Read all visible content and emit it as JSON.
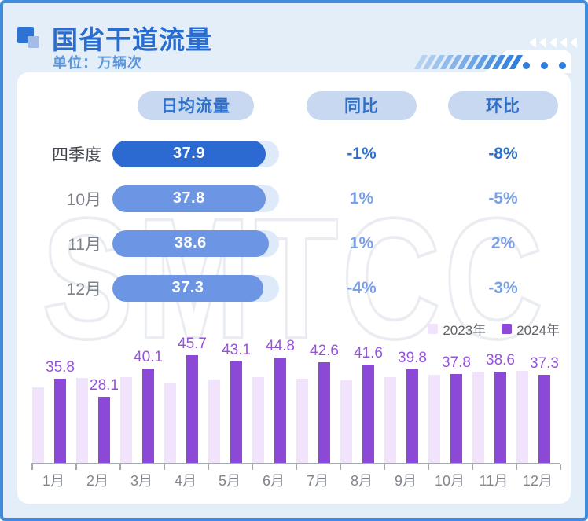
{
  "header": {
    "title": "国省干道流量",
    "subtitle": "单位：万辆次"
  },
  "watermark": "SMTCC",
  "decor": {
    "chevrons_count": 5,
    "dots_count": 3,
    "slashes_count": 12
  },
  "table": {
    "columns": [
      {
        "key": "flow",
        "label": "日均流量"
      },
      {
        "key": "yoy",
        "label": "同比"
      },
      {
        "key": "mom",
        "label": "环比"
      }
    ],
    "bar_scale_max": 41.2,
    "rows": [
      {
        "label": "四季度",
        "flow": 37.9,
        "yoy": "-1%",
        "mom": "-8%",
        "emphasis": true
      },
      {
        "label": "10月",
        "flow": 37.8,
        "yoy": "1%",
        "mom": "-5%",
        "emphasis": false
      },
      {
        "label": "11月",
        "flow": 38.6,
        "yoy": "1%",
        "mom": "2%",
        "emphasis": false
      },
      {
        "label": "12月",
        "flow": 37.3,
        "yoy": "-4%",
        "mom": "-3%",
        "emphasis": false
      }
    ]
  },
  "chart_data": {
    "type": "bar",
    "categories": [
      "1月",
      "2月",
      "3月",
      "4月",
      "5月",
      "6月",
      "7月",
      "8月",
      "9月",
      "10月",
      "11月",
      "12月"
    ],
    "series": [
      {
        "name": "2023年",
        "color": "#f0e3fb",
        "values": [
          31.9,
          36.0,
          36.2,
          33.6,
          35.3,
          36.2,
          35.6,
          35.0,
          36.4,
          37.4,
          38.2,
          38.9
        ],
        "labels_shown": false
      },
      {
        "name": "2024年",
        "color": "#8c48d6",
        "values": [
          35.8,
          28.1,
          40.1,
          45.7,
          43.1,
          44.8,
          42.6,
          41.6,
          39.8,
          37.8,
          38.6,
          37.3
        ],
        "labels_shown": true
      }
    ],
    "legend_position": "top-right",
    "ylim": [
      0,
      50
    ],
    "grid": false,
    "unit": "万辆次"
  },
  "colors": {
    "page_bg": "#e4eef9",
    "page_border": "#3f8cdf",
    "title_blue": "#2a6dd1",
    "subtitle_blue": "#5a96d8",
    "pill_bg": "#c7d8f0",
    "pill_text": "#2e70ca",
    "bar_strong": "#2c69d1",
    "bar_month": "#6c96e4",
    "bar_track": "#dee9fa",
    "purple_2024": "#8c48d6",
    "lavender_2023": "#f0e3fb",
    "dot_blue": "#2b7de0",
    "slash_from": "#b7d2f1",
    "slash_to": "#2f7fdd"
  }
}
